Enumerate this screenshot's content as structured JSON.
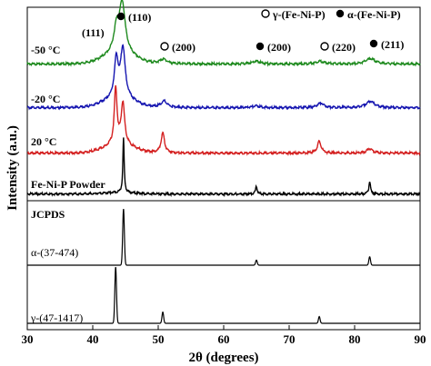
{
  "chart_data": {
    "type": "line",
    "title": "",
    "xlabel": "2θ (degrees)",
    "ylabel": "Intensity (a.u.)",
    "xlim": [
      30,
      90
    ],
    "xticks": [
      "30",
      "40",
      "50",
      "60",
      "70",
      "80",
      "90"
    ],
    "grid": false,
    "legend": {
      "placement": "top-right",
      "entries": [
        {
          "label": "γ-(Fe-Ni-P)",
          "marker": "open-circle"
        },
        {
          "label": "α-(Fe-Ni-P)",
          "marker": "filled-circle"
        }
      ]
    },
    "panels": [
      {
        "name": "samples",
        "series": [
          {
            "name": "-50 °C",
            "color": "#1e8a1e",
            "peaks": [
              {
                "x": 43.6,
                "h": 0.24,
                "w": 0.45
              },
              {
                "x": 44.5,
                "h": 0.55,
                "w": 0.55
              },
              {
                "x": 50.8,
                "h": 0.05,
                "w": 0.7
              },
              {
                "x": 65.0,
                "h": 0.03,
                "w": 0.8
              },
              {
                "x": 74.7,
                "h": 0.03,
                "w": 0.8
              },
              {
                "x": 82.4,
                "h": 0.06,
                "w": 0.9
              }
            ]
          },
          {
            "name": "-20 °C",
            "color": "#1515b0",
            "peaks": [
              {
                "x": 43.6,
                "h": 0.42,
                "w": 0.35
              },
              {
                "x": 44.6,
                "h": 0.55,
                "w": 0.42
              },
              {
                "x": 50.9,
                "h": 0.07,
                "w": 0.6
              },
              {
                "x": 65.0,
                "h": 0.02,
                "w": 0.7
              },
              {
                "x": 74.8,
                "h": 0.05,
                "w": 0.6
              },
              {
                "x": 82.4,
                "h": 0.07,
                "w": 0.8
              }
            ]
          },
          {
            "name": "20 °C",
            "color": "#d42020",
            "peaks": [
              {
                "x": 43.5,
                "h": 0.62,
                "w": 0.25
              },
              {
                "x": 44.6,
                "h": 0.46,
                "w": 0.32
              },
              {
                "x": 50.7,
                "h": 0.22,
                "w": 0.32
              },
              {
                "x": 74.6,
                "h": 0.13,
                "w": 0.35
              },
              {
                "x": 82.3,
                "h": 0.05,
                "w": 0.5
              }
            ]
          },
          {
            "name": "Fe-Ni-P Powder",
            "color": "#000000",
            "peaks": [
              {
                "x": 44.7,
                "h": 0.62,
                "w": 0.12
              },
              {
                "x": 65.0,
                "h": 0.09,
                "w": 0.14
              },
              {
                "x": 82.3,
                "h": 0.15,
                "w": 0.14
              }
            ]
          }
        ],
        "annotations": [
          {
            "text": "(111)",
            "marker": "none",
            "x": 43.6
          },
          {
            "text": "(110)",
            "marker": "filled-circle",
            "x": 44.6
          },
          {
            "text": "(200)",
            "marker": "open-circle",
            "x": 50.8
          },
          {
            "text": "(200)",
            "marker": "filled-circle",
            "x": 65.0
          },
          {
            "text": "(220)",
            "marker": "open-circle",
            "x": 74.7
          },
          {
            "text": "(211)",
            "marker": "filled-circle",
            "x": 82.4
          }
        ]
      },
      {
        "name": "reference",
        "heading": "JCPDS",
        "series": [
          {
            "name": "α-(37-474)",
            "color": "#000000",
            "sticks": [
              {
                "x": 44.7,
                "h": 1.0
              },
              {
                "x": 65.0,
                "h": 0.09
              },
              {
                "x": 82.3,
                "h": 0.15
              }
            ]
          },
          {
            "name": "γ-(47-1417)",
            "color": "#000000",
            "sticks": [
              {
                "x": 43.5,
                "h": 1.0
              },
              {
                "x": 50.7,
                "h": 0.2
              },
              {
                "x": 74.6,
                "h": 0.12
              }
            ]
          }
        ]
      }
    ]
  }
}
